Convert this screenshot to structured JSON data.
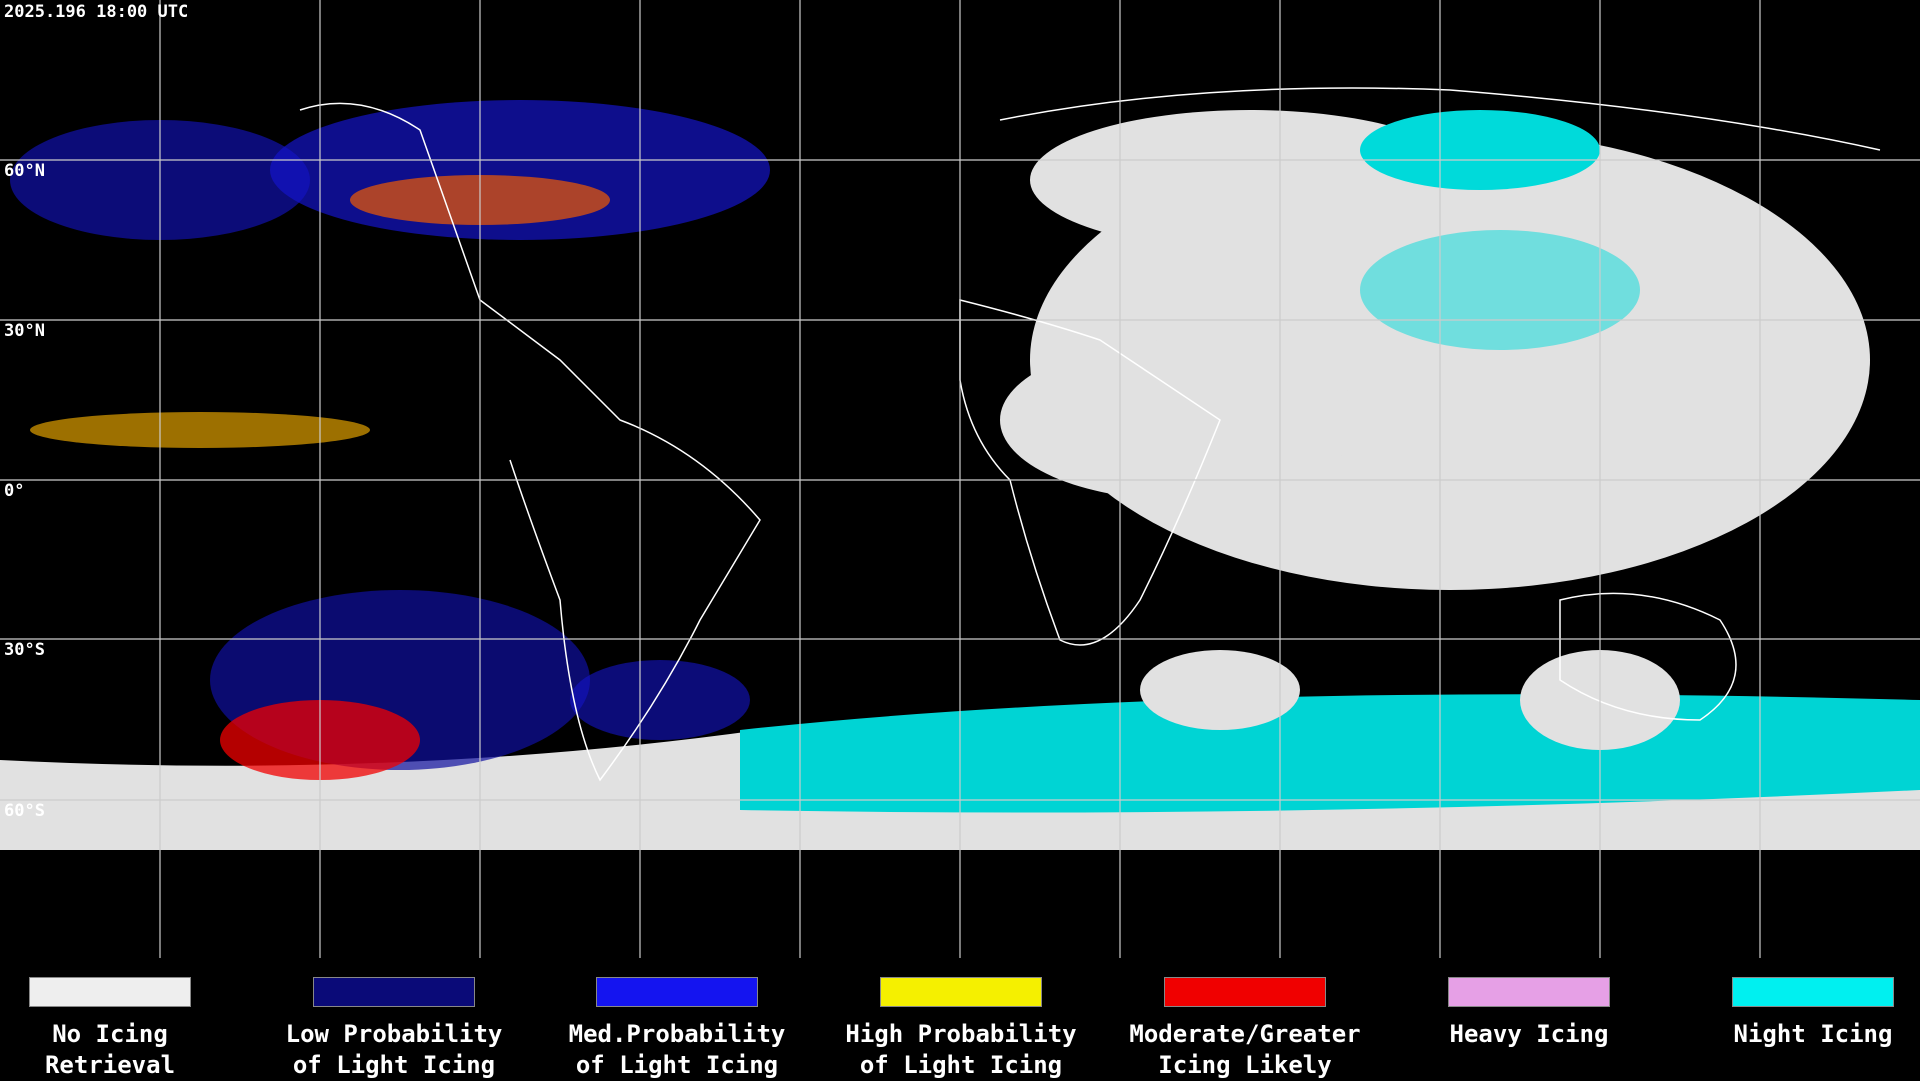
{
  "timestamp": "2025.196 18:00 UTC",
  "lat_labels": [
    "60°N",
    "30°N",
    "0°",
    "30°S",
    "60°S"
  ],
  "legend": {
    "items": [
      {
        "color": "#eeeeee",
        "label": [
          "No Icing",
          "Retrieval"
        ]
      },
      {
        "color": "#0a0a78",
        "label": [
          "Low Probability",
          "of Light Icing"
        ]
      },
      {
        "color": "#1414f0",
        "label": [
          "Med.Probability",
          "of Light Icing"
        ]
      },
      {
        "color": "#f5f000",
        "label": [
          "High Probability",
          "of Light Icing"
        ]
      },
      {
        "color": "#f00000",
        "label": [
          "Moderate/Greater",
          "Icing Likely"
        ]
      },
      {
        "color": "#e6a0e6",
        "label": [
          "Heavy Icing"
        ]
      },
      {
        "color": "#00f0f0",
        "label": [
          "Night Icing"
        ]
      }
    ]
  }
}
